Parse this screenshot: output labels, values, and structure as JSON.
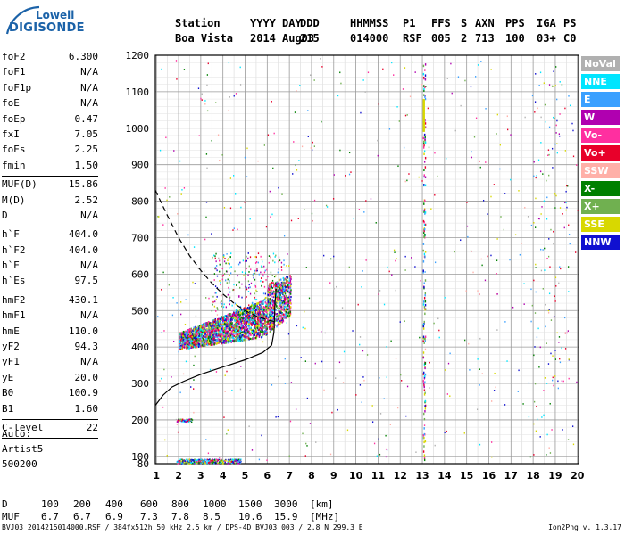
{
  "logo": {
    "line1": "Lowell",
    "line2": "DIGISONDE"
  },
  "header": {
    "labels": [
      "Station",
      "YYYY",
      "DAY",
      "DDD",
      "HHMMSS",
      "P1",
      "FFS",
      "S",
      "AXN",
      "PPS",
      "IGA",
      "PS"
    ],
    "values": [
      "Boa Vista",
      "2014",
      "Aug03",
      "215",
      "014000",
      "RSF",
      "005",
      "2",
      "713",
      "100",
      "03+",
      "C0"
    ]
  },
  "params": [
    [
      {
        "name": "foF2",
        "value": "6.300"
      },
      {
        "name": "foF1",
        "value": "N/A"
      },
      {
        "name": "foF1p",
        "value": "N/A"
      },
      {
        "name": "foE",
        "value": "N/A"
      },
      {
        "name": "foEp",
        "value": "0.47"
      },
      {
        "name": "fxI",
        "value": "7.05"
      },
      {
        "name": "foEs",
        "value": "2.25"
      },
      {
        "name": "fmin",
        "value": "1.50"
      }
    ],
    [
      {
        "name": "MUF(D)",
        "value": "15.86"
      },
      {
        "name": "M(D)",
        "value": "2.52"
      },
      {
        "name": "D",
        "value": "N/A"
      }
    ],
    [
      {
        "name": "h`F",
        "value": "404.0"
      },
      {
        "name": "h`F2",
        "value": "404.0"
      },
      {
        "name": "h`E",
        "value": "N/A"
      },
      {
        "name": "h`Es",
        "value": "97.5"
      }
    ],
    [
      {
        "name": "hmF2",
        "value": "430.1"
      },
      {
        "name": "hmF1",
        "value": "N/A"
      },
      {
        "name": "hmE",
        "value": "110.0"
      },
      {
        "name": "yF2",
        "value": "94.3"
      },
      {
        "name": "yF1",
        "value": "N/A"
      },
      {
        "name": "yE",
        "value": "20.0"
      },
      {
        "name": "B0",
        "value": "100.9"
      },
      {
        "name": "B1",
        "value": "1.60"
      }
    ],
    [
      {
        "name": "C-level",
        "value": "22"
      }
    ]
  ],
  "auto": {
    "line1": "Auto:",
    "line2": "Artist5",
    "line3": "500200"
  },
  "legend": [
    {
      "label": "NoVal",
      "color": "#b0b0b0"
    },
    {
      "label": "NNE",
      "color": "#00e5ff"
    },
    {
      "label": "E",
      "color": "#3aa0ff"
    },
    {
      "label": "W",
      "color": "#b000b0"
    },
    {
      "label": "Vo-",
      "color": "#ff2fa0"
    },
    {
      "label": "Vo+",
      "color": "#e8002a"
    },
    {
      "label": "SSW",
      "color": "#ffb0a8"
    },
    {
      "label": "X-",
      "color": "#008000"
    },
    {
      "label": "X+",
      "color": "#70b050"
    },
    {
      "label": "SSE",
      "color": "#d8d800"
    },
    {
      "label": "NNW",
      "color": "#1010d0"
    }
  ],
  "muf_table": {
    "d_label": "D",
    "muf_label": "MUF",
    "d_values": [
      "100",
      "200",
      "400",
      "600",
      "800",
      "1000",
      "1500",
      "3000"
    ],
    "muf_values": [
      "6.7",
      "6.7",
      "6.9",
      "7.3",
      "7.8",
      "8.5",
      "10.6",
      "15.9"
    ],
    "d_unit": "[km]",
    "muf_unit": "[MHz]"
  },
  "footer": "BVJ03_2014215014000.RSF / 384fx512h 50 kHz 2.5 km / DPS-4D BVJ03 003 / 2.8 N 299.3 E",
  "version": "Ion2Png v. 1.3.17",
  "chart_data": {
    "type": "scatter",
    "x_ticks": [
      1,
      2,
      3,
      4,
      5,
      6,
      7,
      8,
      9,
      10,
      11,
      12,
      13,
      14,
      15,
      16,
      17,
      18,
      19,
      20
    ],
    "y_ticks": [
      80,
      100,
      200,
      300,
      400,
      500,
      600,
      700,
      800,
      900,
      1000,
      1100,
      1200
    ],
    "xlim": [
      0.95,
      20.05
    ],
    "ylim": [
      80,
      1200
    ],
    "grid": true,
    "legend_position": "right",
    "traces": [
      {
        "style": "solid",
        "points": [
          [
            0.95,
            240
          ],
          [
            1.3,
            268
          ],
          [
            1.7,
            290
          ],
          [
            2.2,
            305
          ],
          [
            3,
            325
          ],
          [
            4,
            345
          ],
          [
            5,
            365
          ],
          [
            5.8,
            385
          ],
          [
            6.2,
            405
          ],
          [
            6.3,
            440
          ],
          [
            6.32,
            470
          ],
          [
            6.35,
            520
          ],
          [
            6.4,
            560
          ]
        ]
      },
      {
        "style": "dashed",
        "points": [
          [
            0.95,
            830
          ],
          [
            1.5,
            760
          ],
          [
            2,
            700
          ],
          [
            2.5,
            650
          ],
          [
            3,
            610
          ],
          [
            3.5,
            575
          ],
          [
            4,
            545
          ],
          [
            4.5,
            520
          ],
          [
            5,
            500
          ],
          [
            5.5,
            485
          ],
          [
            6,
            475
          ],
          [
            6.3,
            470
          ]
        ]
      }
    ],
    "echo_clusters": [
      {
        "x": [
          2.0,
          7.05
        ],
        "y": [
          400,
          600
        ]
      },
      {
        "x": [
          1.9,
          4.8
        ],
        "y": [
          80,
          95
        ]
      },
      {
        "x": [
          1.9,
          2.6
        ],
        "y": [
          195,
          205
        ]
      }
    ]
  }
}
